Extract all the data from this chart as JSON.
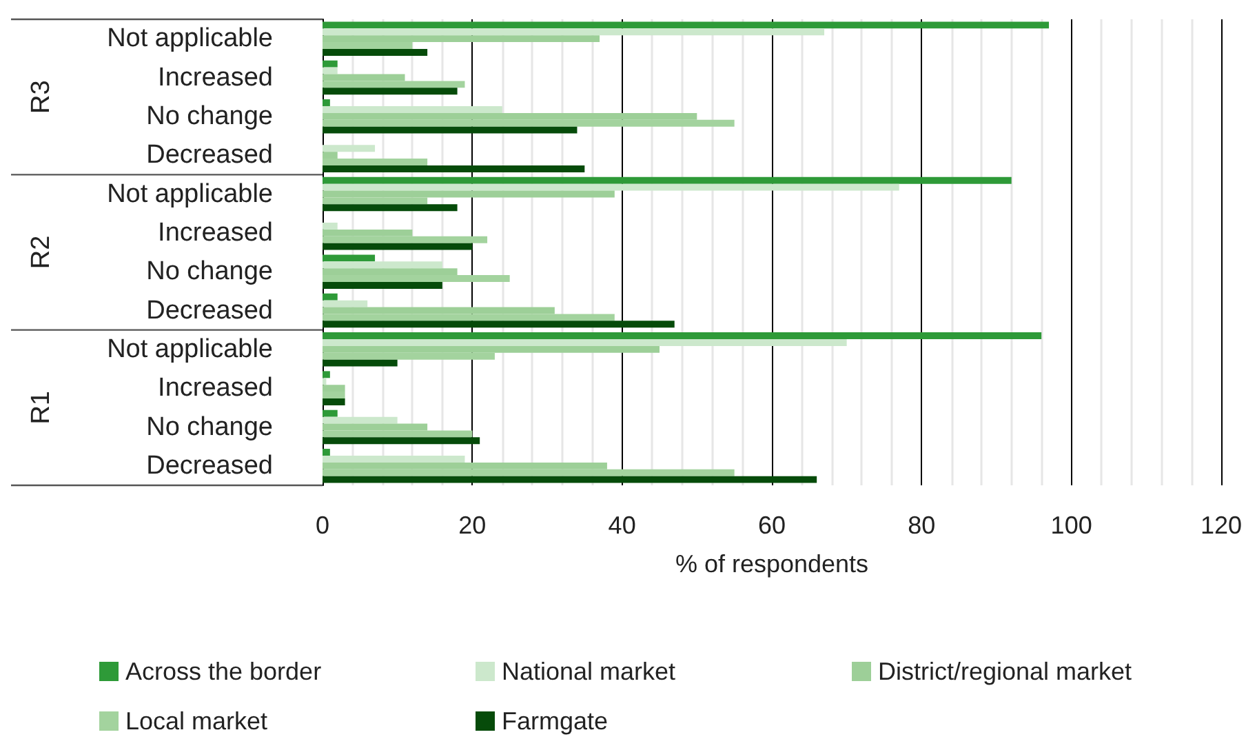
{
  "chart_data": {
    "type": "bar",
    "orientation": "horizontal",
    "xlabel": "% of respondents",
    "categories": [
      "Not applicable",
      "Increased",
      "No change",
      "Decreased",
      "Not applicable",
      "Increased",
      "No change",
      "Decreased",
      "Not applicable",
      "Increased",
      "No change",
      "Decreased"
    ],
    "annotations": [
      "R3",
      "R2",
      "R1"
    ],
    "series": [
      {
        "name": "Across the border",
        "color": "#2e9a38",
        "values": [
          97,
          2,
          1,
          0,
          92,
          0,
          7,
          2,
          96,
          1,
          2,
          1
        ]
      },
      {
        "name": "National market",
        "color": "#cce8cc",
        "values": [
          67,
          2,
          24,
          7,
          77,
          2,
          16,
          6,
          70,
          0.5,
          10,
          19
        ]
      },
      {
        "name": "District/regional market",
        "color": "#9dcf98",
        "values": [
          37,
          11,
          50,
          2,
          39,
          12,
          18,
          31,
          45,
          3,
          14,
          38
        ]
      },
      {
        "name": "Local market",
        "color": "#a3d39e",
        "values": [
          12,
          19,
          55,
          14,
          14,
          22,
          25,
          39,
          23,
          3,
          20,
          55
        ]
      },
      {
        "name": "Farmgate",
        "color": "#064b0a",
        "values": [
          14,
          18,
          34,
          35,
          18,
          20,
          16,
          47,
          10,
          3,
          21,
          66
        ]
      }
    ],
    "xlim": [
      0,
      120
    ],
    "xticks": [
      0,
      20,
      40,
      60,
      80,
      100,
      120
    ],
    "grid": "x",
    "legend": "bottom"
  }
}
